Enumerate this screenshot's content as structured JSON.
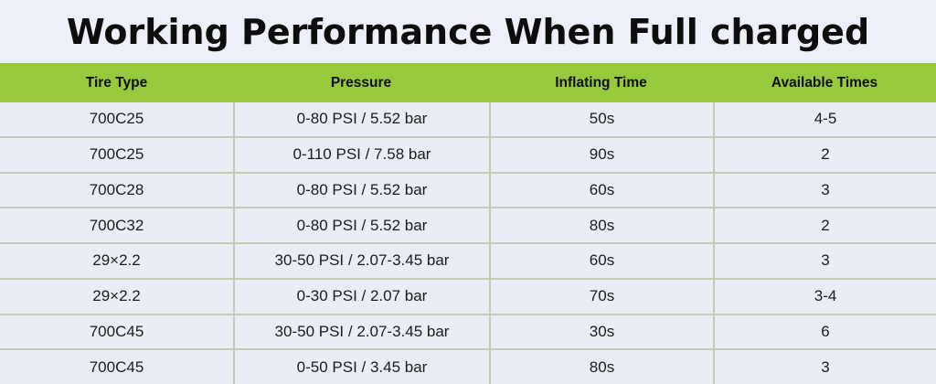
{
  "title": "Working Performance When Full charged",
  "chart_data": {
    "type": "table",
    "title": "Working Performance When Full charged",
    "columns": [
      "Tire Type",
      "Pressure",
      "Inflating Time",
      "Available Times"
    ],
    "rows": [
      [
        "700C25",
        "0-80 PSI / 5.52 bar",
        "50s",
        "4-5"
      ],
      [
        "700C25",
        "0-110 PSI / 7.58 bar",
        "90s",
        "2"
      ],
      [
        "700C28",
        "0-80 PSI / 5.52 bar",
        "60s",
        "3"
      ],
      [
        "700C32",
        "0-80 PSI / 5.52 bar",
        "80s",
        "2"
      ],
      [
        "29×2.2",
        "30-50 PSI / 2.07-3.45 bar",
        "60s",
        "3"
      ],
      [
        "29×2.2",
        "0-30 PSI / 2.07 bar",
        "70s",
        "3-4"
      ],
      [
        "700C45",
        "30-50 PSI / 2.07-3.45 bar",
        "30s",
        "6"
      ],
      [
        "700C45",
        "0-50 PSI / 3.45 bar",
        "80s",
        "3"
      ]
    ]
  },
  "colors": {
    "header_green": "#97C93D",
    "divider": "#C3CCB7",
    "row_bg": "#E9EDF5",
    "page_bg": "#EDF0F8",
    "text": "#141414"
  }
}
